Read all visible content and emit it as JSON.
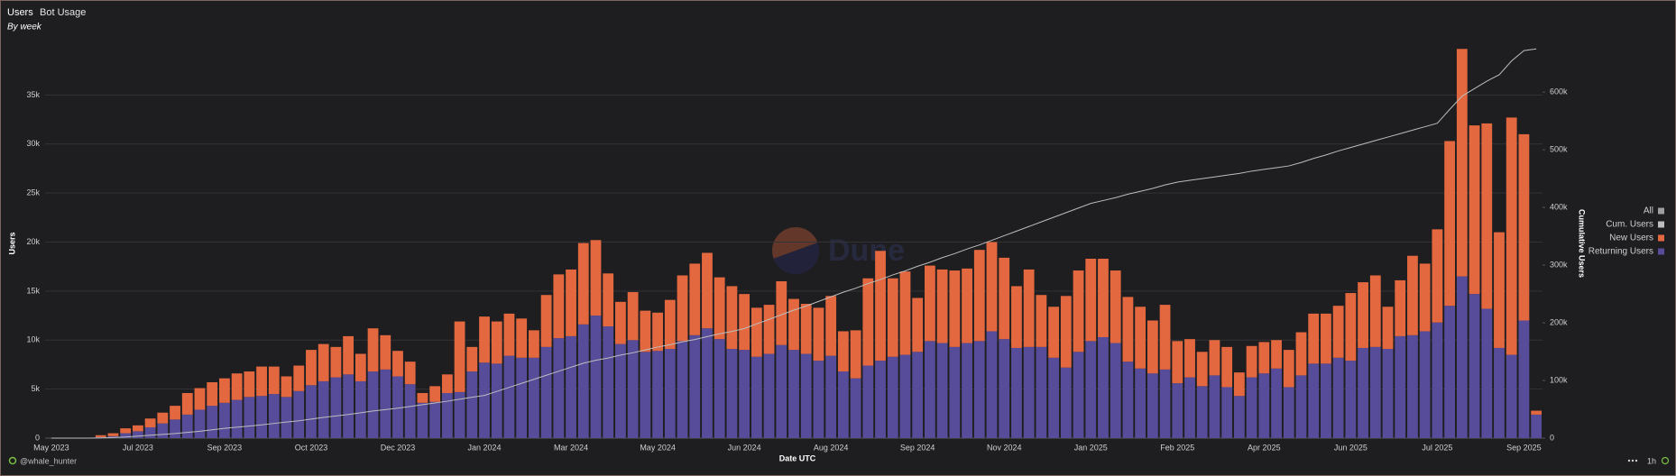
{
  "tabs": [
    "Users",
    "Bot Usage"
  ],
  "footer": {
    "author": "@whale_hunter",
    "interval": "1h"
  },
  "watermark": "Dune",
  "chart_data": {
    "type": "bar",
    "stacked": true,
    "subtitle": "By week",
    "xlabel": "Date UTC",
    "ylabel": "Users",
    "y2label": "Cumulative Users",
    "legend": "right",
    "legend_all": "All",
    "grid": true,
    "categories": [
      "May 2023",
      null,
      null,
      null,
      null,
      null,
      null,
      "Jul 2023",
      null,
      null,
      null,
      null,
      null,
      null,
      "Sep 2023",
      null,
      null,
      null,
      null,
      null,
      null,
      "Oct 2023",
      null,
      null,
      null,
      null,
      null,
      null,
      "Dec 2023",
      null,
      null,
      null,
      null,
      null,
      null,
      "Jan 2024",
      null,
      null,
      null,
      null,
      null,
      null,
      "Mar 2024",
      null,
      null,
      null,
      null,
      null,
      null,
      "May 2024",
      null,
      null,
      null,
      null,
      null,
      null,
      "Jun 2024",
      null,
      null,
      null,
      null,
      null,
      null,
      "Aug 2024",
      null,
      null,
      null,
      null,
      null,
      null,
      "Sep 2024",
      null,
      null,
      null,
      null,
      null,
      null,
      "Nov 2024",
      null,
      null,
      null,
      null,
      null,
      null,
      "Jan 2025",
      null,
      null,
      null,
      null,
      null,
      null,
      "Feb 2025",
      null,
      null,
      null,
      null,
      null,
      null,
      "Apr 2025",
      null,
      null,
      null,
      null,
      null,
      null,
      "Jun 2025",
      null,
      null,
      null,
      null,
      null,
      null,
      "Jul 2025",
      null,
      null,
      null,
      null,
      null,
      null,
      "Sep 2025",
      null
    ],
    "ylim": [
      0,
      40000
    ],
    "yticks": [
      0,
      {
        "value": 5000,
        "label": "5k"
      },
      {
        "value": 10000,
        "label": "10k"
      },
      {
        "value": 15000,
        "label": "15k"
      },
      {
        "value": 20000,
        "label": "20k"
      },
      {
        "value": 25000,
        "label": "25k"
      },
      {
        "value": 30000,
        "label": "30k"
      },
      {
        "value": 35000,
        "label": "35k"
      }
    ],
    "y2lim": [
      0,
      680000
    ],
    "y2ticks": [
      0,
      {
        "value": 100000,
        "label": "100k"
      },
      {
        "value": 200000,
        "label": "200k"
      },
      {
        "value": 300000,
        "label": "300k"
      },
      {
        "value": 400000,
        "label": "400k"
      },
      {
        "value": 500000,
        "label": "500k"
      },
      {
        "value": 600000,
        "label": "600k"
      }
    ],
    "series": [
      {
        "name": "Cum. Users",
        "type": "line",
        "axis": "y2",
        "color": "#bdbdbd",
        "values": [
          0,
          0,
          0,
          0,
          300,
          1000,
          2000,
          3500,
          5000,
          6500,
          8000,
          10000,
          12000,
          14500,
          17000,
          19000,
          21000,
          23000,
          25500,
          28000,
          30000,
          33000,
          36000,
          38500,
          41000,
          44000,
          47000,
          49500,
          52000,
          55000,
          58000,
          61000,
          64000,
          67500,
          71000,
          74000,
          81000,
          88000,
          95000,
          102000,
          109000,
          116000,
          123000,
          130000,
          135000,
          139000,
          144000,
          148000,
          153000,
          158000,
          162000,
          167000,
          171000,
          176000,
          181000,
          185000,
          190000,
          198000,
          206000,
          214000,
          222000,
          229000,
          237000,
          245000,
          253000,
          260000,
          268000,
          275000,
          283000,
          290000,
          298000,
          305000,
          313000,
          320000,
          328000,
          335000,
          343000,
          351000,
          359000,
          367000,
          375000,
          383000,
          391000,
          399000,
          407000,
          412000,
          417000,
          423000,
          428000,
          433000,
          439000,
          444000,
          447000,
          450000,
          453000,
          456000,
          459000,
          463000,
          466000,
          469000,
          472000,
          478000,
          485000,
          491000,
          498000,
          504000,
          510000,
          516000,
          522000,
          528000,
          534000,
          540000,
          546000,
          570000,
          593000,
          606000,
          619000,
          630000,
          654000,
          672000,
          675000
        ]
      },
      {
        "name": "New Users",
        "type": "bar",
        "color": "#e4683f",
        "values": [
          0,
          0,
          0,
          0,
          200,
          300,
          500,
          600,
          900,
          1100,
          1400,
          2200,
          2200,
          2400,
          2500,
          2700,
          2600,
          3000,
          2800,
          2100,
          2600,
          3600,
          3800,
          3100,
          3900,
          2800,
          4400,
          3500,
          2600,
          2300,
          1000,
          1600,
          1900,
          7200,
          2500,
          4700,
          4300,
          4300,
          4000,
          2800,
          5300,
          6500,
          6800,
          8300,
          7700,
          5400,
          4300,
          4900,
          4200,
          3900,
          5000,
          6700,
          7300,
          7700,
          6300,
          6400,
          5700,
          5000,
          5000,
          6500,
          5200,
          5100,
          5400,
          6100,
          4100,
          4900,
          8900,
          11200,
          8000,
          8500,
          5500,
          7700,
          7500,
          7800,
          7600,
          9300,
          9100,
          8300,
          6300,
          7900,
          5300,
          5200,
          7300,
          8300,
          8400,
          8000,
          7400,
          6600,
          6300,
          5400,
          6600,
          4300,
          3900,
          3500,
          3600,
          4100,
          2400,
          3200,
          3200,
          2900,
          3800,
          4400,
          5100,
          5100,
          5300,
          6900,
          6700,
          7300,
          4300,
          5700,
          8100,
          6900,
          9500,
          16800,
          23200,
          17200,
          18900,
          11800,
          24200,
          19000,
          400
        ]
      },
      {
        "name": "Returning Users",
        "type": "bar",
        "color": "#574c9a",
        "values": [
          0,
          0,
          0,
          0,
          100,
          200,
          500,
          700,
          1100,
          1500,
          1900,
          2400,
          2900,
          3300,
          3600,
          3900,
          4200,
          4300,
          4500,
          4200,
          4800,
          5400,
          5800,
          6200,
          6500,
          5800,
          6800,
          7000,
          6300,
          5500,
          3600,
          3700,
          4600,
          4700,
          6800,
          7700,
          7600,
          8400,
          8200,
          8200,
          9300,
          10200,
          10400,
          11600,
          12500,
          11400,
          9600,
          10000,
          8800,
          8900,
          9100,
          9900,
          10500,
          11200,
          10100,
          9100,
          9000,
          8300,
          8600,
          9500,
          9000,
          8600,
          7900,
          8400,
          6800,
          6100,
          7400,
          7900,
          8300,
          8500,
          8800,
          9900,
          9700,
          9300,
          9700,
          9900,
          10900,
          10100,
          9200,
          9300,
          9300,
          8200,
          7200,
          8800,
          9900,
          10300,
          9700,
          7800,
          7100,
          6600,
          7000,
          5600,
          6200,
          5300,
          6400,
          5200,
          4300,
          6200,
          6600,
          7100,
          5200,
          6400,
          7600,
          7600,
          8200,
          7900,
          9200,
          9300,
          9100,
          10400,
          10500,
          10900,
          11800,
          13500,
          16500,
          14700,
          13200,
          9200,
          8500,
          12000,
          2400
        ]
      }
    ]
  }
}
